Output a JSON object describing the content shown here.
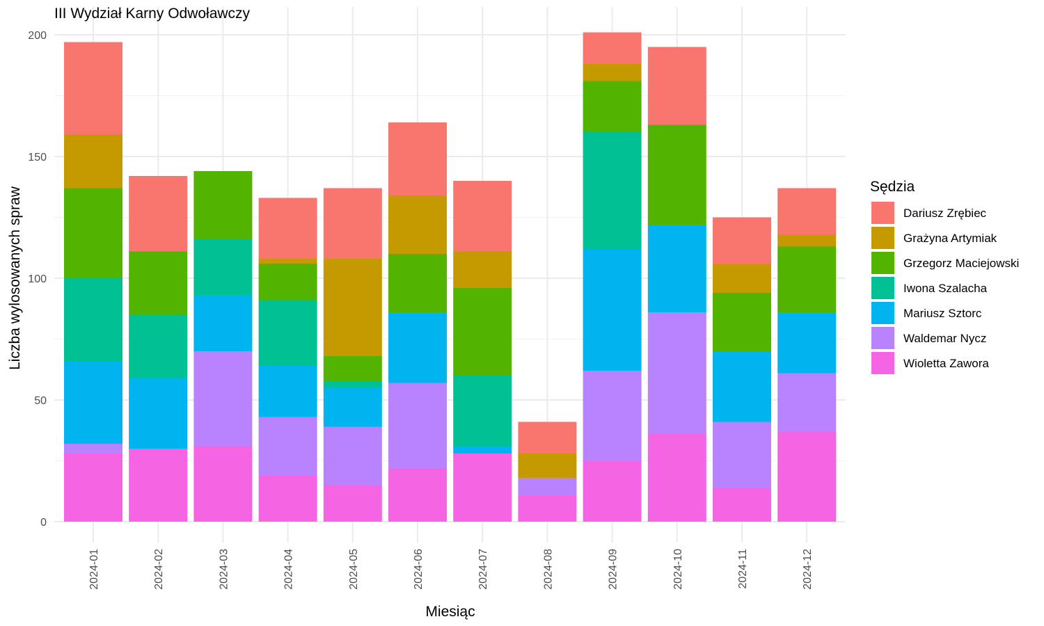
{
  "chart_data": {
    "type": "bar",
    "stacked": true,
    "title": "III Wydział Karny Odwoławczy",
    "xlabel": "Miesiąc",
    "ylabel": "Liczba wylosowanych spraw",
    "ylim": [
      0,
      210
    ],
    "yticks": [
      0,
      50,
      100,
      150,
      200
    ],
    "grid": true,
    "legend_title": "Sędzia",
    "legend_position": "right",
    "categories": [
      "2024-01",
      "2024-02",
      "2024-03",
      "2024-04",
      "2024-05",
      "2024-06",
      "2024-07",
      "2024-08",
      "2024-09",
      "2024-10",
      "2024-11",
      "2024-12"
    ],
    "series": [
      {
        "name": "Wioletta Zawora",
        "color": "#F564E3",
        "values": [
          28,
          30,
          31,
          19,
          15,
          22,
          28,
          11,
          25,
          36,
          14,
          37
        ]
      },
      {
        "name": "Waldemar Nycz",
        "color": "#B983FF",
        "values": [
          4,
          0,
          39,
          24,
          24,
          35,
          0,
          7,
          37,
          50,
          27,
          24
        ]
      },
      {
        "name": "Mariusz Sztorc",
        "color": "#00B4EF",
        "values": [
          34,
          29,
          23,
          21,
          16,
          29,
          3,
          0,
          50,
          36,
          29,
          25
        ]
      },
      {
        "name": "Iwona Szalacha",
        "color": "#00C094",
        "values": [
          34,
          26,
          23,
          27,
          3,
          0,
          29,
          0,
          48,
          0,
          0,
          0
        ]
      },
      {
        "name": "Grzegorz Maciejowski",
        "color": "#53B400",
        "values": [
          37,
          26,
          28,
          15,
          10,
          24,
          36,
          0,
          21,
          41,
          24,
          27
        ]
      },
      {
        "name": "Grażyna Artymiak",
        "color": "#C49A00",
        "values": [
          22,
          0,
          0,
          2,
          40,
          24,
          15,
          10,
          7,
          0,
          12,
          5
        ]
      },
      {
        "name": "Dariusz Zrębiec",
        "color": "#F8766D",
        "values": [
          38,
          31,
          0,
          25,
          29,
          30,
          29,
          13,
          13,
          32,
          19,
          19
        ]
      }
    ],
    "legend_order": [
      "Dariusz Zrębiec",
      "Grażyna Artymiak",
      "Grzegorz Maciejowski",
      "Iwona Szalacha",
      "Mariusz Sztorc",
      "Waldemar Nycz",
      "Wioletta Zawora"
    ]
  }
}
